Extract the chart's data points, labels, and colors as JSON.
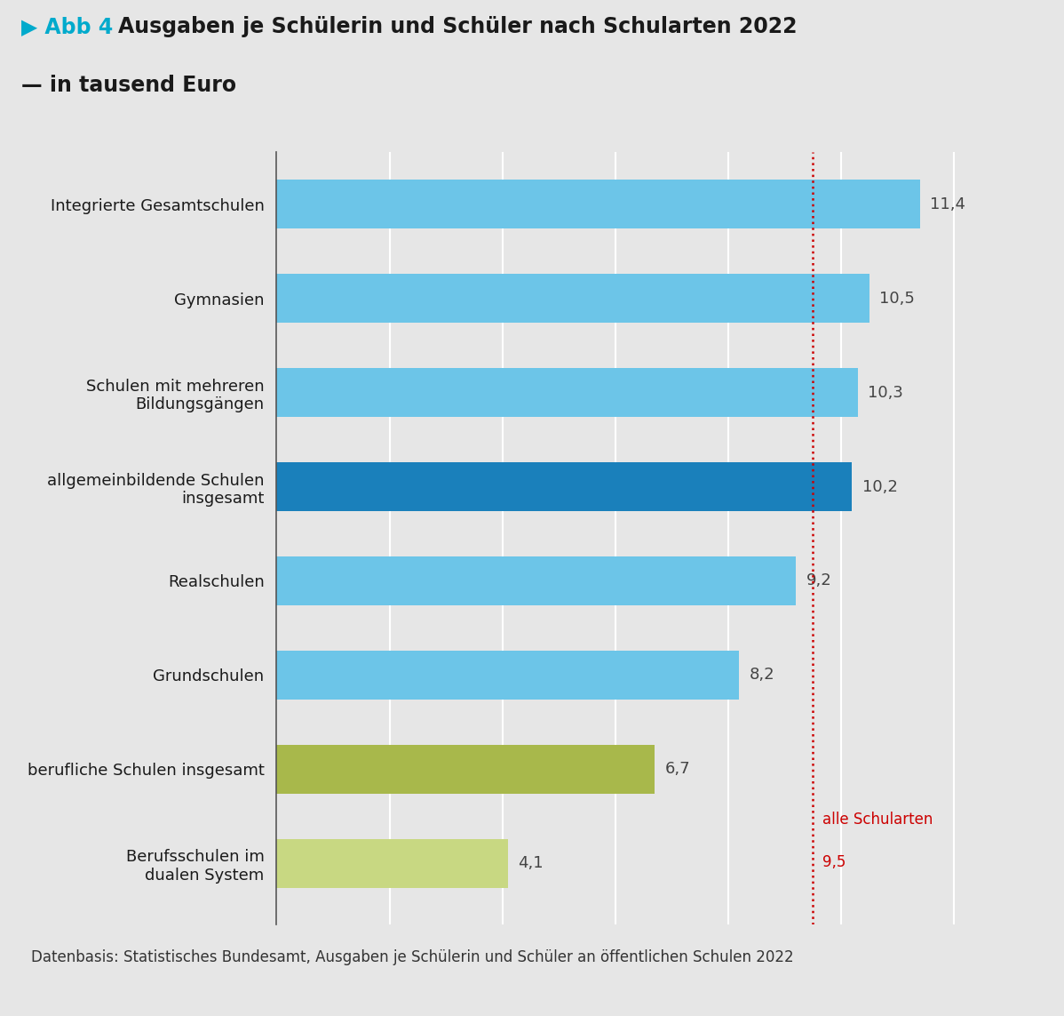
{
  "title_prefix": "▶ Abb 4",
  "title_main": "Ausgaben je Schülerin und Schüler nach Schularten 2022",
  "title_sub": "— in tausend Euro",
  "categories": [
    "Integrierte Gesamtschulen",
    "Gymnasien",
    "Schulen mit mehreren\nBildungsgängen",
    "allgemeinbildende Schulen\ninsgesamt",
    "Realschulen",
    "Grundschulen",
    "berufliche Schulen insgesamt",
    "Berufsschulen im\ndualen System"
  ],
  "values": [
    11.4,
    10.5,
    10.3,
    10.2,
    9.2,
    8.2,
    6.7,
    4.1
  ],
  "bar_colors": [
    "#6CC5E8",
    "#6CC5E8",
    "#6CC5E8",
    "#1A80BB",
    "#6CC5E8",
    "#6CC5E8",
    "#A8B84B",
    "#C8D882"
  ],
  "value_labels": [
    "11,4",
    "10,5",
    "10,3",
    "10,2",
    "9,2",
    "8,2",
    "6,7",
    "4,1"
  ],
  "refline_value": 9.5,
  "refline_label_line1": "alle Schularten",
  "refline_label_line2": "9,5",
  "refline_color": "#CC0000",
  "xlim": [
    0,
    13.2
  ],
  "background_color": "#E6E6E6",
  "plot_bg_color": "#E6E6E6",
  "grid_color": "#FFFFFF",
  "bar_height": 0.52,
  "footnote": "Datenbasis: Statistisches Bundesamt, Ausgaben je Schülerin und Schüler an öffentlichen Schulen 2022",
  "title_color": "#1A1A1A",
  "title_prefix_color": "#00AACC",
  "value_label_color": "#444444",
  "refline_label_color": "#CC0000",
  "xticks": [
    0,
    2,
    4,
    6,
    8,
    10,
    12
  ]
}
